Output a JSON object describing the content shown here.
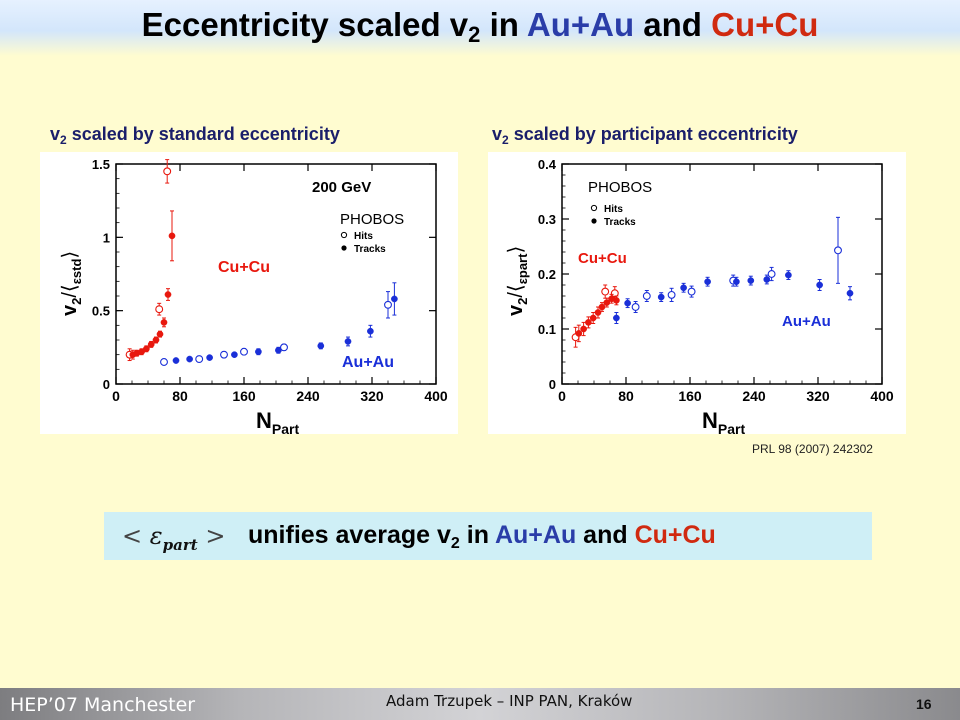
{
  "slide": {
    "title_prefix": "Eccentricity scaled v",
    "title_sub": "2",
    "title_in": " in ",
    "title_auau": "Au+Au",
    "title_and": " and ",
    "title_cucu": "Cu+Cu",
    "panel_left": {
      "prefix": "v",
      "sub": "2",
      "text": " scaled by standard eccentricity"
    },
    "panel_right": {
      "prefix": "v",
      "sub": "2",
      "text": " scaled by participant eccentricity"
    },
    "reference": "PRL 98 (2007) 242302",
    "callout": {
      "lt": "<",
      "epsilon": "ε",
      "part": "part",
      "gt": ">",
      "text_prefix": "unifies average v",
      "text_sub": "2",
      "text_in": " in ",
      "auau": "Au+Au",
      "and": " and ",
      "cucu": "Cu+Cu"
    },
    "footer": {
      "left": "HEP’07 Manchester",
      "center": "Adam Trzupek – INP PAN, Kraków",
      "page": "16"
    }
  },
  "colors": {
    "cucu": "#e8180e",
    "auau": "#1a2fd8",
    "title_blue": "#2a3da8",
    "title_red": "#d02a10"
  },
  "chart_data": [
    {
      "type": "scatter",
      "panel": "left",
      "energy_label": "200 GeV",
      "legend_title": "PHOBOS",
      "legend_entries": [
        "Hits",
        "Tracks"
      ],
      "ylabel_text": "v2/⟨εstd⟩",
      "xlabel_text": "NPart",
      "xlim": [
        0,
        400
      ],
      "ylim": [
        0,
        1.5
      ],
      "xticks": [
        0,
        80,
        160,
        240,
        320,
        400
      ],
      "yticks": [
        0,
        0.5,
        1,
        1.5
      ],
      "series_labels": {
        "cucu": "Cu+Cu",
        "auau": "Au+Au"
      },
      "series": [
        {
          "system": "cucu",
          "marker": "open",
          "points": [
            [
              17,
              0.2,
              0.04
            ],
            [
              54,
              0.51,
              0.04
            ],
            [
              64,
              1.45,
              0.08
            ]
          ]
        },
        {
          "system": "cucu",
          "marker": "filled",
          "points": [
            [
              21,
              0.2,
              0.03
            ],
            [
              26,
              0.21,
              0.02
            ],
            [
              32,
              0.22,
              0.02
            ],
            [
              38,
              0.24,
              0.02
            ],
            [
              44,
              0.27,
              0.02
            ],
            [
              50,
              0.3,
              0.02
            ],
            [
              55,
              0.34,
              0.02
            ],
            [
              60,
              0.42,
              0.03
            ],
            [
              65,
              0.61,
              0.04
            ],
            [
              70,
              1.01,
              0.17
            ]
          ]
        },
        {
          "system": "auau",
          "marker": "open",
          "points": [
            [
              60,
              0.15,
              0.02
            ],
            [
              104,
              0.17,
              0.02
            ],
            [
              135,
              0.2,
              0.02
            ],
            [
              160,
              0.22,
              0.02
            ],
            [
              210,
              0.25,
              0.02
            ],
            [
              340,
              0.54,
              0.09
            ]
          ]
        },
        {
          "system": "auau",
          "marker": "filled",
          "points": [
            [
              75,
              0.16,
              0.01
            ],
            [
              92,
              0.17,
              0.01
            ],
            [
              117,
              0.18,
              0.01
            ],
            [
              148,
              0.2,
              0.01
            ],
            [
              178,
              0.22,
              0.02
            ],
            [
              203,
              0.23,
              0.02
            ],
            [
              256,
              0.26,
              0.02
            ],
            [
              290,
              0.29,
              0.03
            ],
            [
              318,
              0.36,
              0.04
            ],
            [
              348,
              0.58,
              0.11
            ]
          ]
        }
      ]
    },
    {
      "type": "scatter",
      "panel": "right",
      "legend_title": "PHOBOS",
      "legend_entries": [
        "Hits",
        "Tracks"
      ],
      "ylabel_text": "v2/⟨εpart⟩",
      "xlabel_text": "NPart",
      "xlim": [
        0,
        400
      ],
      "ylim": [
        0,
        0.4
      ],
      "xticks": [
        0,
        80,
        160,
        240,
        320,
        400
      ],
      "yticks": [
        0,
        0.1,
        0.2,
        0.3,
        0.4
      ],
      "series_labels": {
        "cucu": "Cu+Cu",
        "auau": "Au+Au"
      },
      "series": [
        {
          "system": "cucu",
          "marker": "open",
          "points": [
            [
              17,
              0.085,
              0.018
            ],
            [
              54,
              0.168,
              0.012
            ],
            [
              66,
              0.165,
              0.012
            ]
          ]
        },
        {
          "system": "cucu",
          "marker": "filled",
          "points": [
            [
              21,
              0.092,
              0.015
            ],
            [
              27,
              0.1,
              0.012
            ],
            [
              33,
              0.112,
              0.01
            ],
            [
              39,
              0.12,
              0.01
            ],
            [
              45,
              0.13,
              0.01
            ],
            [
              50,
              0.14,
              0.008
            ],
            [
              56,
              0.148,
              0.008
            ],
            [
              62,
              0.155,
              0.008
            ],
            [
              68,
              0.152,
              0.008
            ]
          ]
        },
        {
          "system": "auau",
          "marker": "open",
          "points": [
            [
              92,
              0.14,
              0.01
            ],
            [
              106,
              0.16,
              0.01
            ],
            [
              137,
              0.162,
              0.012
            ],
            [
              162,
              0.168,
              0.01
            ],
            [
              214,
              0.188,
              0.01
            ],
            [
              262,
              0.2,
              0.012
            ],
            [
              345,
              0.243,
              0.06
            ]
          ]
        },
        {
          "system": "auau",
          "marker": "filled",
          "points": [
            [
              68,
              0.12,
              0.01
            ],
            [
              82,
              0.147,
              0.008
            ],
            [
              124,
              0.158,
              0.008
            ],
            [
              152,
              0.175,
              0.008
            ],
            [
              182,
              0.186,
              0.008
            ],
            [
              218,
              0.186,
              0.008
            ],
            [
              236,
              0.188,
              0.008
            ],
            [
              256,
              0.19,
              0.008
            ],
            [
              283,
              0.198,
              0.008
            ],
            [
              322,
              0.18,
              0.01
            ],
            [
              360,
              0.165,
              0.012
            ]
          ]
        }
      ]
    }
  ]
}
